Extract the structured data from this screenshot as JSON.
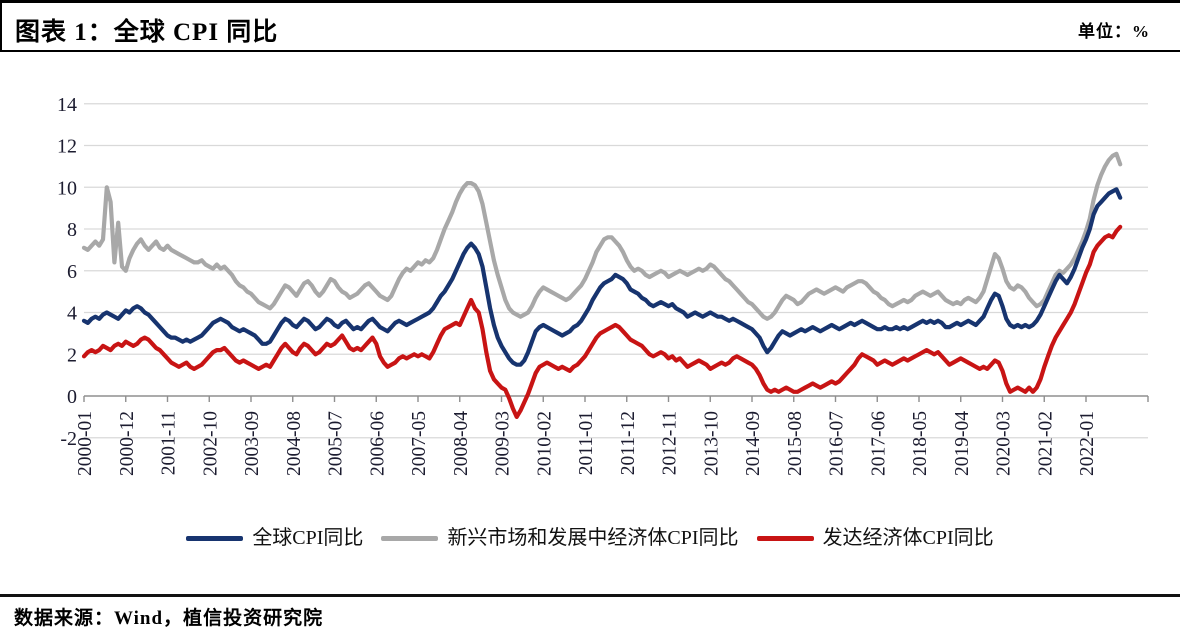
{
  "header": {
    "title": "图表 1：全球 CPI 同比",
    "unit_label": "单位：%"
  },
  "footer": {
    "source": "数据来源：Wind，植信投资研究院"
  },
  "colors": {
    "global_line": "#17346f",
    "emerging_line": "#a8a8a8",
    "developed_line": "#c81414",
    "gridline": "#d9d9d9",
    "axis_line": "#8f8f8f",
    "tick_label": "#1c1c30",
    "frame_border": "#000000"
  },
  "chart_data": {
    "type": "line",
    "title": "图表 1：全球 CPI 同比",
    "unit": "%",
    "x_start": "2000-01",
    "x_end": "2022-10",
    "x_frequency": "monthly",
    "ylim": [
      -2,
      14
    ],
    "y_ticks": [
      -2,
      0,
      2,
      4,
      6,
      8,
      10,
      12,
      14
    ],
    "grid": "horizontal",
    "legend_position": "bottom",
    "x_tick_labels": [
      "2000-01",
      "2000-12",
      "2001-11",
      "2002-10",
      "2003-09",
      "2004-08",
      "2005-07",
      "2006-06",
      "2007-05",
      "2008-04",
      "2009-03",
      "2010-02",
      "2011-01",
      "2011-12",
      "2012-11",
      "2013-10",
      "2014-09",
      "2015-08",
      "2016-07",
      "2017-06",
      "2018-05",
      "2019-04",
      "2020-03",
      "2021-02",
      "2022-01"
    ],
    "x_tick_month_indices": [
      0,
      11,
      22,
      33,
      44,
      55,
      66,
      77,
      88,
      99,
      110,
      121,
      132,
      143,
      154,
      165,
      176,
      187,
      198,
      209,
      220,
      231,
      242,
      253,
      264
    ],
    "series": [
      {
        "name": "全球CPI同比",
        "color": "#17346f",
        "values": [
          3.6,
          3.5,
          3.7,
          3.8,
          3.7,
          3.9,
          4.0,
          3.9,
          3.8,
          3.7,
          3.9,
          4.1,
          4.0,
          4.2,
          4.3,
          4.2,
          4.0,
          3.9,
          3.7,
          3.5,
          3.3,
          3.1,
          2.9,
          2.8,
          2.8,
          2.7,
          2.6,
          2.7,
          2.6,
          2.7,
          2.8,
          2.9,
          3.1,
          3.3,
          3.5,
          3.6,
          3.7,
          3.6,
          3.5,
          3.3,
          3.2,
          3.1,
          3.2,
          3.1,
          3.0,
          2.9,
          2.7,
          2.5,
          2.5,
          2.6,
          2.9,
          3.2,
          3.5,
          3.7,
          3.6,
          3.4,
          3.3,
          3.5,
          3.7,
          3.6,
          3.4,
          3.2,
          3.3,
          3.5,
          3.7,
          3.6,
          3.4,
          3.3,
          3.5,
          3.6,
          3.4,
          3.2,
          3.3,
          3.2,
          3.4,
          3.6,
          3.7,
          3.5,
          3.3,
          3.2,
          3.1,
          3.3,
          3.5,
          3.6,
          3.5,
          3.4,
          3.5,
          3.6,
          3.7,
          3.8,
          3.9,
          4.0,
          4.2,
          4.5,
          4.8,
          5.0,
          5.3,
          5.6,
          6.0,
          6.4,
          6.8,
          7.1,
          7.3,
          7.1,
          6.8,
          6.2,
          5.2,
          4.2,
          3.4,
          2.8,
          2.4,
          2.1,
          1.8,
          1.6,
          1.5,
          1.5,
          1.7,
          2.1,
          2.6,
          3.1,
          3.3,
          3.4,
          3.3,
          3.2,
          3.1,
          3.0,
          2.9,
          3.0,
          3.1,
          3.3,
          3.4,
          3.6,
          3.9,
          4.2,
          4.6,
          4.9,
          5.2,
          5.4,
          5.5,
          5.6,
          5.8,
          5.7,
          5.6,
          5.4,
          5.1,
          5.0,
          4.9,
          4.7,
          4.6,
          4.4,
          4.3,
          4.4,
          4.5,
          4.4,
          4.3,
          4.4,
          4.2,
          4.1,
          4.0,
          3.8,
          3.9,
          4.0,
          3.9,
          3.8,
          3.9,
          4.0,
          3.9,
          3.8,
          3.8,
          3.7,
          3.6,
          3.7,
          3.6,
          3.5,
          3.4,
          3.3,
          3.2,
          3.0,
          2.8,
          2.4,
          2.1,
          2.3,
          2.6,
          2.9,
          3.1,
          3.0,
          2.9,
          3.0,
          3.1,
          3.2,
          3.1,
          3.2,
          3.3,
          3.2,
          3.1,
          3.2,
          3.3,
          3.4,
          3.3,
          3.2,
          3.3,
          3.4,
          3.5,
          3.4,
          3.5,
          3.6,
          3.5,
          3.4,
          3.3,
          3.2,
          3.2,
          3.3,
          3.2,
          3.2,
          3.3,
          3.2,
          3.3,
          3.2,
          3.3,
          3.4,
          3.5,
          3.6,
          3.5,
          3.6,
          3.5,
          3.6,
          3.5,
          3.3,
          3.3,
          3.4,
          3.5,
          3.4,
          3.5,
          3.6,
          3.5,
          3.4,
          3.6,
          3.8,
          4.2,
          4.6,
          4.9,
          4.8,
          4.3,
          3.7,
          3.4,
          3.3,
          3.4,
          3.3,
          3.4,
          3.3,
          3.4,
          3.6,
          3.9,
          4.3,
          4.7,
          5.1,
          5.5,
          5.8,
          5.6,
          5.4,
          5.7,
          6.1,
          6.6,
          7.1,
          7.5,
          8.0,
          8.7,
          9.1,
          9.3,
          9.5,
          9.7,
          9.8,
          9.9,
          9.5
        ]
      },
      {
        "name": "新兴市场和发展中经济体CPI同比",
        "color": "#a8a8a8",
        "values": [
          7.1,
          7.0,
          7.2,
          7.4,
          7.2,
          7.5,
          10.0,
          9.3,
          6.4,
          8.3,
          6.2,
          6.0,
          6.6,
          7.0,
          7.3,
          7.5,
          7.2,
          7.0,
          7.2,
          7.4,
          7.1,
          7.0,
          7.2,
          7.0,
          6.9,
          6.8,
          6.7,
          6.6,
          6.5,
          6.4,
          6.4,
          6.5,
          6.3,
          6.2,
          6.1,
          6.3,
          6.1,
          6.2,
          6.0,
          5.8,
          5.5,
          5.3,
          5.2,
          5.0,
          4.9,
          4.7,
          4.5,
          4.4,
          4.3,
          4.2,
          4.4,
          4.7,
          5.0,
          5.3,
          5.2,
          5.0,
          4.8,
          5.1,
          5.4,
          5.5,
          5.3,
          5.0,
          4.8,
          5.0,
          5.3,
          5.6,
          5.5,
          5.2,
          5.0,
          4.9,
          4.7,
          4.8,
          4.9,
          5.1,
          5.3,
          5.4,
          5.2,
          5.0,
          4.8,
          4.7,
          4.6,
          4.8,
          5.2,
          5.6,
          5.9,
          6.1,
          6.0,
          6.2,
          6.4,
          6.3,
          6.5,
          6.4,
          6.6,
          7.0,
          7.5,
          8.0,
          8.4,
          8.8,
          9.3,
          9.7,
          10.0,
          10.2,
          10.2,
          10.1,
          9.8,
          9.2,
          8.3,
          7.4,
          6.5,
          5.8,
          5.2,
          4.6,
          4.2,
          4.0,
          3.9,
          3.8,
          3.9,
          4.0,
          4.3,
          4.7,
          5.0,
          5.2,
          5.1,
          5.0,
          4.9,
          4.8,
          4.7,
          4.6,
          4.7,
          4.9,
          5.1,
          5.3,
          5.6,
          6.0,
          6.4,
          6.9,
          7.2,
          7.5,
          7.6,
          7.6,
          7.4,
          7.2,
          6.9,
          6.5,
          6.2,
          6.0,
          6.1,
          6.0,
          5.8,
          5.7,
          5.8,
          5.9,
          6.0,
          5.9,
          5.7,
          5.8,
          5.9,
          6.0,
          5.9,
          5.8,
          5.9,
          6.0,
          6.1,
          6.0,
          6.1,
          6.3,
          6.2,
          6.0,
          5.8,
          5.6,
          5.5,
          5.3,
          5.1,
          4.9,
          4.7,
          4.5,
          4.4,
          4.2,
          4.0,
          3.8,
          3.7,
          3.8,
          4.0,
          4.3,
          4.6,
          4.8,
          4.7,
          4.6,
          4.4,
          4.5,
          4.7,
          4.9,
          5.0,
          5.1,
          5.0,
          4.9,
          5.0,
          5.1,
          5.2,
          5.1,
          5.0,
          5.2,
          5.3,
          5.4,
          5.5,
          5.5,
          5.4,
          5.2,
          5.0,
          4.9,
          4.7,
          4.6,
          4.4,
          4.3,
          4.4,
          4.5,
          4.6,
          4.5,
          4.6,
          4.8,
          4.9,
          5.0,
          4.9,
          4.8,
          4.9,
          5.0,
          4.8,
          4.6,
          4.5,
          4.4,
          4.5,
          4.4,
          4.6,
          4.7,
          4.6,
          4.5,
          4.7,
          5.0,
          5.6,
          6.2,
          6.8,
          6.6,
          6.1,
          5.5,
          5.2,
          5.1,
          5.3,
          5.2,
          5.0,
          4.7,
          4.5,
          4.3,
          4.4,
          4.6,
          5.0,
          5.4,
          5.8,
          6.0,
          5.9,
          6.1,
          6.3,
          6.6,
          7.0,
          7.4,
          7.9,
          8.5,
          9.4,
          10.1,
          10.6,
          11.0,
          11.3,
          11.5,
          11.6,
          11.1
        ]
      },
      {
        "name": "发达经济体CPI同比",
        "color": "#c81414",
        "values": [
          1.9,
          2.1,
          2.2,
          2.1,
          2.2,
          2.4,
          2.3,
          2.2,
          2.4,
          2.5,
          2.4,
          2.6,
          2.5,
          2.4,
          2.5,
          2.7,
          2.8,
          2.7,
          2.5,
          2.3,
          2.2,
          2.0,
          1.8,
          1.6,
          1.5,
          1.4,
          1.5,
          1.6,
          1.4,
          1.3,
          1.4,
          1.5,
          1.7,
          1.9,
          2.1,
          2.2,
          2.2,
          2.3,
          2.1,
          1.9,
          1.7,
          1.6,
          1.7,
          1.6,
          1.5,
          1.4,
          1.3,
          1.4,
          1.5,
          1.4,
          1.7,
          2.0,
          2.3,
          2.5,
          2.3,
          2.1,
          2.0,
          2.3,
          2.5,
          2.4,
          2.2,
          2.0,
          2.1,
          2.3,
          2.5,
          2.4,
          2.5,
          2.7,
          2.9,
          2.6,
          2.3,
          2.2,
          2.3,
          2.2,
          2.4,
          2.6,
          2.8,
          2.5,
          1.9,
          1.6,
          1.4,
          1.5,
          1.6,
          1.8,
          1.9,
          1.8,
          1.9,
          2.0,
          1.9,
          2.0,
          1.9,
          1.8,
          2.1,
          2.5,
          2.9,
          3.2,
          3.3,
          3.4,
          3.5,
          3.4,
          3.8,
          4.2,
          4.6,
          4.2,
          4.0,
          3.2,
          2.1,
          1.2,
          0.8,
          0.6,
          0.4,
          0.3,
          -0.1,
          -0.6,
          -1.0,
          -0.7,
          -0.3,
          0.1,
          0.6,
          1.1,
          1.4,
          1.5,
          1.6,
          1.5,
          1.4,
          1.3,
          1.4,
          1.3,
          1.2,
          1.4,
          1.5,
          1.7,
          1.9,
          2.2,
          2.5,
          2.8,
          3.0,
          3.1,
          3.2,
          3.3,
          3.4,
          3.3,
          3.1,
          2.9,
          2.7,
          2.6,
          2.5,
          2.4,
          2.2,
          2.0,
          1.9,
          2.0,
          2.1,
          2.0,
          1.8,
          1.9,
          1.7,
          1.8,
          1.6,
          1.4,
          1.5,
          1.6,
          1.7,
          1.6,
          1.5,
          1.3,
          1.4,
          1.5,
          1.6,
          1.5,
          1.6,
          1.8,
          1.9,
          1.8,
          1.7,
          1.6,
          1.5,
          1.3,
          1.0,
          0.6,
          0.3,
          0.2,
          0.3,
          0.2,
          0.3,
          0.4,
          0.3,
          0.2,
          0.2,
          0.3,
          0.4,
          0.5,
          0.6,
          0.5,
          0.4,
          0.5,
          0.6,
          0.7,
          0.6,
          0.7,
          0.9,
          1.1,
          1.3,
          1.5,
          1.8,
          2.0,
          1.9,
          1.8,
          1.7,
          1.5,
          1.6,
          1.7,
          1.6,
          1.5,
          1.6,
          1.7,
          1.8,
          1.7,
          1.8,
          1.9,
          2.0,
          2.1,
          2.2,
          2.1,
          2.0,
          2.1,
          1.9,
          1.7,
          1.5,
          1.6,
          1.7,
          1.8,
          1.7,
          1.6,
          1.5,
          1.4,
          1.3,
          1.4,
          1.3,
          1.5,
          1.7,
          1.6,
          1.2,
          0.6,
          0.2,
          0.3,
          0.4,
          0.3,
          0.2,
          0.4,
          0.2,
          0.4,
          0.8,
          1.4,
          1.9,
          2.4,
          2.8,
          3.1,
          3.4,
          3.7,
          4.0,
          4.4,
          4.9,
          5.4,
          5.9,
          6.3,
          6.9,
          7.2,
          7.4,
          7.6,
          7.7,
          7.6,
          7.9,
          8.1
        ]
      }
    ]
  }
}
